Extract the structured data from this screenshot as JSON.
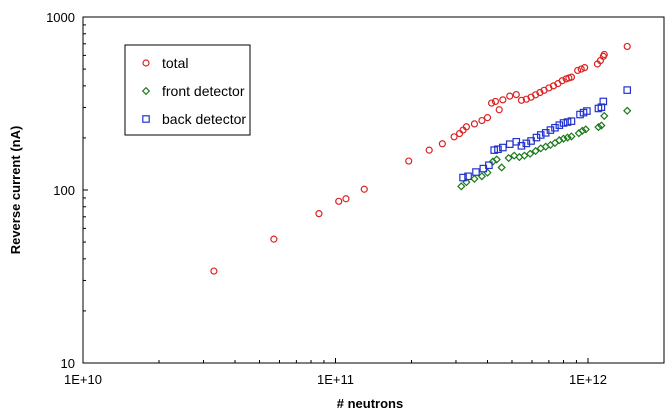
{
  "chart_data": {
    "type": "scatter",
    "title": "",
    "xlabel": "# neutrons",
    "ylabel": "Reverse current (nA)",
    "xscale": "log",
    "yscale": "log",
    "xlim": [
      10000000000.0,
      2000000000000.0
    ],
    "ylim": [
      10,
      1000
    ],
    "grid": false,
    "legend_position": "top-left",
    "x_ticks": [
      {
        "value": 10000000000.0,
        "label": "1E+10"
      },
      {
        "value": 100000000000.0,
        "label": "1E+11"
      },
      {
        "value": 1000000000000.0,
        "label": "1E+12"
      }
    ],
    "y_ticks": [
      {
        "value": 10,
        "label": "10"
      },
      {
        "value": 100,
        "label": "100"
      },
      {
        "value": 1000,
        "label": "1000"
      }
    ],
    "series": [
      {
        "name": "total",
        "color": "#dd2222",
        "marker": "circle",
        "points": [
          [
            33000000000.0,
            34
          ],
          [
            57000000000.0,
            52
          ],
          [
            86000000000.0,
            73
          ],
          [
            103000000000.0,
            86
          ],
          [
            110000000000.0,
            89
          ],
          [
            130000000000.0,
            101
          ],
          [
            195000000000.0,
            147
          ],
          [
            235000000000.0,
            170
          ],
          [
            265000000000.0,
            185
          ],
          [
            295000000000.0,
            203
          ],
          [
            310000000000.0,
            212
          ],
          [
            320000000000.0,
            222
          ],
          [
            330000000000.0,
            232
          ],
          [
            355000000000.0,
            241
          ],
          [
            380000000000.0,
            252
          ],
          [
            400000000000.0,
            262
          ],
          [
            415000000000.0,
            318
          ],
          [
            430000000000.0,
            325
          ],
          [
            445000000000.0,
            291
          ],
          [
            460000000000.0,
            332
          ],
          [
            490000000000.0,
            349
          ],
          [
            520000000000.0,
            356
          ],
          [
            545000000000.0,
            330
          ],
          [
            570000000000.0,
            335
          ],
          [
            595000000000.0,
            344
          ],
          [
            620000000000.0,
            355
          ],
          [
            645000000000.0,
            366
          ],
          [
            670000000000.0,
            377
          ],
          [
            700000000000.0,
            389
          ],
          [
            730000000000.0,
            400
          ],
          [
            760000000000.0,
            412
          ],
          [
            790000000000.0,
            428
          ],
          [
            820000000000.0,
            439
          ],
          [
            840000000000.0,
            444
          ],
          [
            860000000000.0,
            449
          ],
          [
            910000000000.0,
            491
          ],
          [
            940000000000.0,
            500
          ],
          [
            970000000000.0,
            510
          ],
          [
            1090000000000.0,
            535
          ],
          [
            1120000000000.0,
            560
          ],
          [
            1150000000000.0,
            592
          ],
          [
            1160000000000.0,
            607
          ],
          [
            1430000000000.0,
            676
          ]
        ]
      },
      {
        "name": "front detector",
        "color": "#1a7a1a",
        "marker": "diamond",
        "points": [
          [
            315000000000.0,
            105
          ],
          [
            330000000000.0,
            111
          ],
          [
            355000000000.0,
            116
          ],
          [
            380000000000.0,
            120
          ],
          [
            400000000000.0,
            126
          ],
          [
            420000000000.0,
            146
          ],
          [
            435000000000.0,
            150
          ],
          [
            455000000000.0,
            135
          ],
          [
            485000000000.0,
            153
          ],
          [
            510000000000.0,
            158
          ],
          [
            535000000000.0,
            155
          ],
          [
            560000000000.0,
            158
          ],
          [
            590000000000.0,
            162
          ],
          [
            620000000000.0,
            168
          ],
          [
            650000000000.0,
            174
          ],
          [
            680000000000.0,
            178
          ],
          [
            710000000000.0,
            182
          ],
          [
            740000000000.0,
            187
          ],
          [
            770000000000.0,
            194
          ],
          [
            800000000000.0,
            198
          ],
          [
            830000000000.0,
            201
          ],
          [
            860000000000.0,
            204
          ],
          [
            920000000000.0,
            213
          ],
          [
            950000000000.0,
            220
          ],
          [
            980000000000.0,
            224
          ],
          [
            1100000000000.0,
            231
          ],
          [
            1130000000000.0,
            236
          ],
          [
            1160000000000.0,
            268
          ],
          [
            1430000000000.0,
            287
          ]
        ]
      },
      {
        "name": "back detector",
        "color": "#2233cc",
        "marker": "square",
        "points": [
          [
            320000000000.0,
            118
          ],
          [
            335000000000.0,
            120
          ],
          [
            360000000000.0,
            127
          ],
          [
            385000000000.0,
            133
          ],
          [
            405000000000.0,
            139
          ],
          [
            425000000000.0,
            170
          ],
          [
            440000000000.0,
            172
          ],
          [
            460000000000.0,
            176
          ],
          [
            490000000000.0,
            184
          ],
          [
            520000000000.0,
            190
          ],
          [
            545000000000.0,
            180
          ],
          [
            570000000000.0,
            186
          ],
          [
            595000000000.0,
            192
          ],
          [
            625000000000.0,
            201
          ],
          [
            650000000000.0,
            208
          ],
          [
            680000000000.0,
            214
          ],
          [
            710000000000.0,
            222
          ],
          [
            740000000000.0,
            229
          ],
          [
            770000000000.0,
            237
          ],
          [
            800000000000.0,
            244
          ],
          [
            830000000000.0,
            247
          ],
          [
            860000000000.0,
            250
          ],
          [
            930000000000.0,
            273
          ],
          [
            960000000000.0,
            280
          ],
          [
            990000000000.0,
            286
          ],
          [
            1100000000000.0,
            296
          ],
          [
            1130000000000.0,
            301
          ],
          [
            1150000000000.0,
            325
          ],
          [
            1430000000000.0,
            378
          ]
        ]
      }
    ]
  }
}
